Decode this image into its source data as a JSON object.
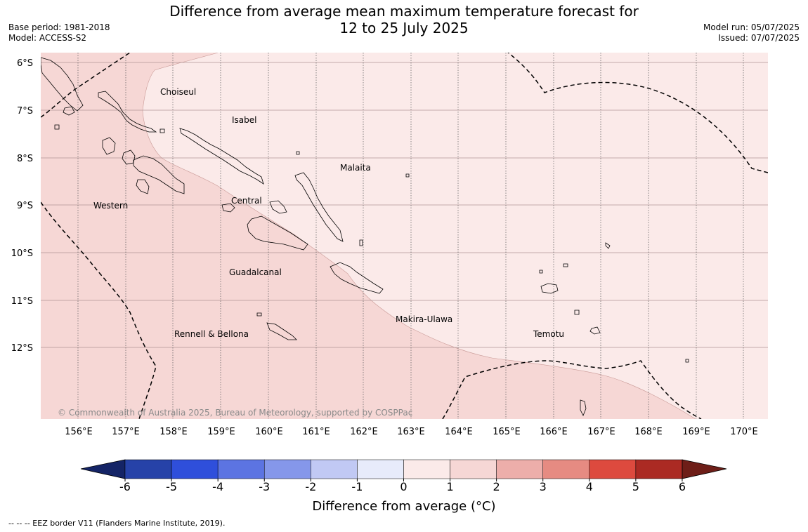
{
  "title_line1": "Difference from average mean maximum temperature forecast for",
  "title_line2": "12 to 25 July 2025",
  "base_period": "Base period: 1981-2018",
  "model": "Model: ACCESS-S2",
  "model_run": "Model run: 05/07/2025",
  "issued": "Issued: 07/07/2025",
  "copyright": "© Commonwealth of Australia 2025, Bureau of Meteorology, supported by COSPPac",
  "eez_note": "-- -- -- EEZ border V11 (Flanders Marine Institute, 2019).",
  "lat_labels": [
    "6°S",
    "7°S",
    "8°S",
    "9°S",
    "10°S",
    "11°S",
    "12°S"
  ],
  "lon_labels": [
    "156°E",
    "157°E",
    "158°E",
    "159°E",
    "160°E",
    "161°E",
    "162°E",
    "163°E",
    "164°E",
    "165°E",
    "166°E",
    "167°E",
    "168°E",
    "169°E",
    "170°E"
  ],
  "places": [
    "Choiseul",
    "Isabel",
    "Malaita",
    "Western",
    "Central",
    "Guadalcanal",
    "Makira-Ulawa",
    "Rennell & Bellona",
    "Temotu"
  ],
  "forecast_classes": [
    {
      "range": "0 to 1",
      "color": "#fbeae9"
    },
    {
      "range": "1 to 2",
      "color": "#f6d7d5"
    }
  ],
  "colorbar": {
    "label": "Difference from average (°C)",
    "ticks": [
      "-6",
      "-5",
      "-4",
      "-3",
      "-2",
      "-1",
      "0",
      "1",
      "2",
      "3",
      "4",
      "5",
      "6"
    ],
    "colors": [
      "#2642a8",
      "#2f4fdb",
      "#5c74e2",
      "#8597ea",
      "#c1c9f4",
      "#e7ebfb",
      "#fbeae9",
      "#f6d7d5",
      "#edaeaa",
      "#e68b82",
      "#dd4a3e",
      "#ab2a23"
    ],
    "under_color": "#142466",
    "over_color": "#6e1e18"
  }
}
